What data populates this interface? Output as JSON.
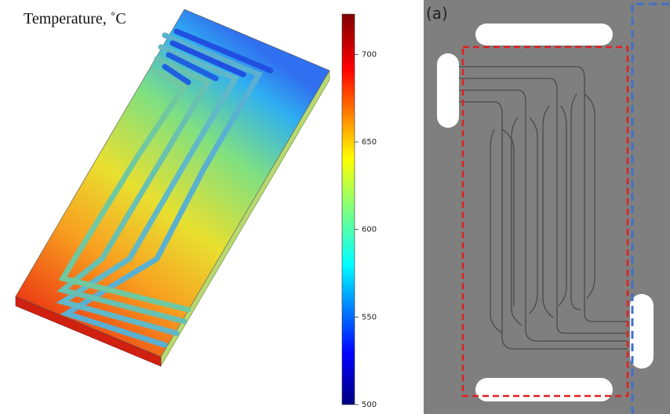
{
  "left_panel": {
    "title": "Temperature, ˚C",
    "colorbar": {
      "lim": [
        500,
        723
      ],
      "ticks": [
        500,
        550,
        600,
        650,
        700
      ]
    }
  },
  "right_panel": {
    "label": "(a)"
  }
}
